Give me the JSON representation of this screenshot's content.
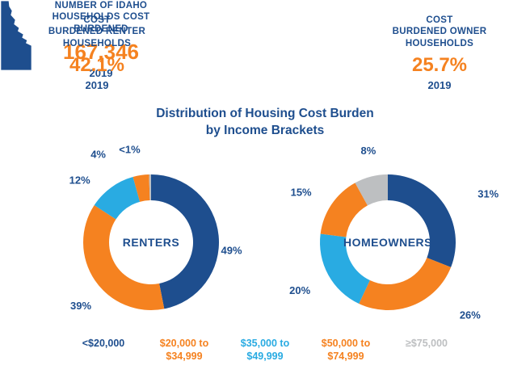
{
  "colors": {
    "navy": "#1E4E8E",
    "orange": "#F58220",
    "cyan": "#29ABE2",
    "gray": "#BDBFC1",
    "background": "#FFFFFF"
  },
  "header": {
    "renter": {
      "title": "COST\nBURDENED RENTER\nHOUSEHOLDS",
      "value": "42.1%",
      "year": "2019"
    },
    "idaho": {
      "title": "NUMBER OF IDAHO\nHOUSEHOLDS COST\nBURDENED",
      "value": "167,346",
      "year": "2019",
      "icon": "idaho-state-icon"
    },
    "owner": {
      "title": "COST\nBURDENED OWNER\nHOUSEHOLDS",
      "value": "25.7%",
      "year": "2019"
    }
  },
  "section_title": "Distribution of Housing Cost Burden\nby Income Brackets",
  "chart_data": [
    {
      "type": "pie",
      "donut": true,
      "title": "RENTERS",
      "center_label": "RENTERS",
      "units": "%",
      "start_angle_deg": 0,
      "direction": "clockwise",
      "segments": [
        {
          "category": "<$20,000",
          "label": "49%",
          "value": 49,
          "color": "navy"
        },
        {
          "category": "$20,000 to $34,999",
          "label": "39%",
          "value": 39,
          "color": "orange"
        },
        {
          "category": "$35,000 to $49,999",
          "label": "12%",
          "value": 12,
          "color": "cyan"
        },
        {
          "category": "$50,000 to $74,999",
          "label": "4%",
          "value": 4,
          "color": "orange"
        },
        {
          "category": "≥$75,000",
          "label": "<1%",
          "value": 0.5,
          "color": "gray"
        }
      ]
    },
    {
      "type": "pie",
      "donut": true,
      "title": "HOMEOWNERS",
      "center_label": "HOMEOWNERS",
      "units": "%",
      "start_angle_deg": 0,
      "direction": "clockwise",
      "segments": [
        {
          "category": "<$20,000",
          "label": "31%",
          "value": 31,
          "color": "navy"
        },
        {
          "category": "$20,000 to $34,999",
          "label": "26%",
          "value": 26,
          "color": "orange"
        },
        {
          "category": "$35,000 to $49,999",
          "label": "20%",
          "value": 20,
          "color": "cyan"
        },
        {
          "category": "$50,000 to $74,999",
          "label": "15%",
          "value": 15,
          "color": "orange"
        },
        {
          "category": "≥$75,000",
          "label": "8%",
          "value": 8,
          "color": "gray"
        }
      ]
    }
  ],
  "legend": [
    {
      "label": "<$20,000",
      "color": "navy"
    },
    {
      "label": "$20,000 to\n$34,999",
      "color": "orange"
    },
    {
      "label": "$35,000 to\n$49,999",
      "color": "cyan"
    },
    {
      "label": "$50,000 to\n$74,999",
      "color": "orange"
    },
    {
      "label": "≥$75,000",
      "color": "gray"
    }
  ]
}
